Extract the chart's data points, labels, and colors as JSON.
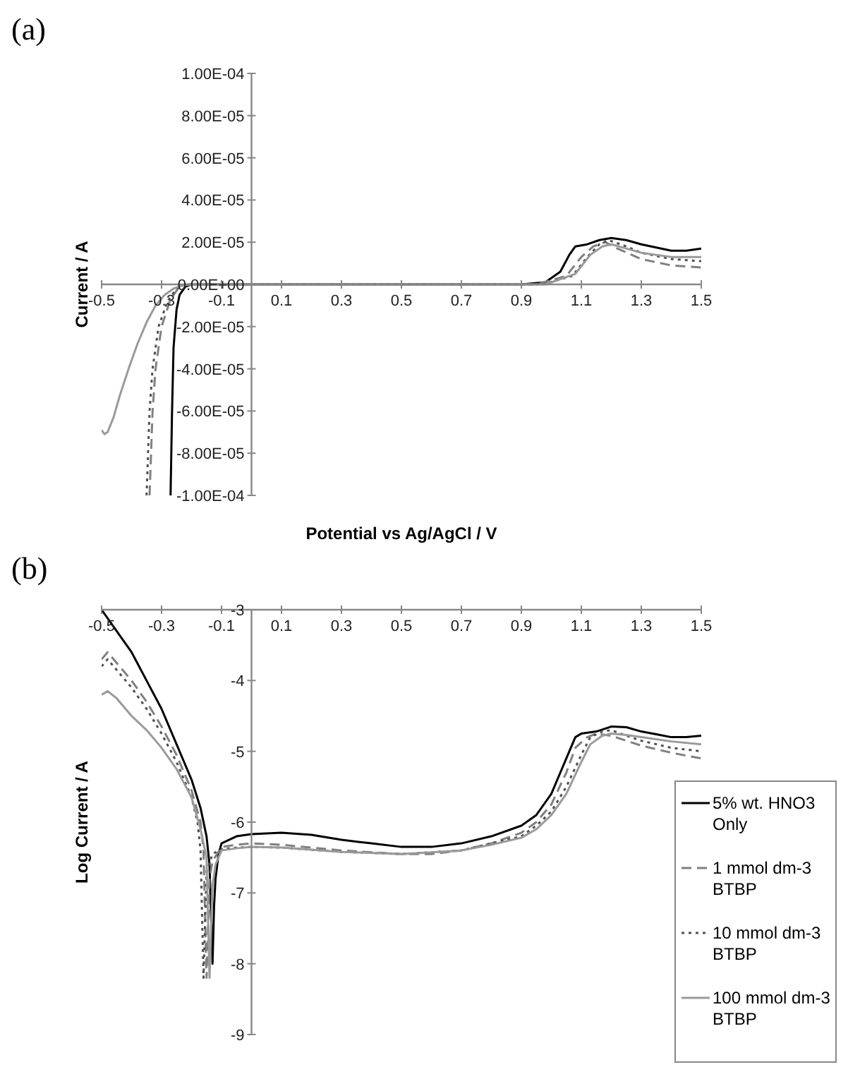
{
  "chart_data": [
    {
      "type": "line",
      "title": "(a)",
      "xlabel": "Potential vs Ag/AgCl / V",
      "ylabel": "Current / A",
      "xlim": [
        -0.5,
        1.5
      ],
      "xticks": [
        -0.5,
        -0.3,
        -0.1,
        0.1,
        0.3,
        0.5,
        0.7,
        0.9,
        1.1,
        1.3,
        1.5
      ],
      "ylim": [
        -0.0001,
        0.0001
      ],
      "yticks": [
        {
          "value": -0.0001,
          "label": "-1.00E-04"
        },
        {
          "value": -8e-05,
          "label": "-8.00E-05"
        },
        {
          "value": -6e-05,
          "label": "-6.00E-05"
        },
        {
          "value": -4e-05,
          "label": "-4.00E-05"
        },
        {
          "value": -2e-05,
          "label": "-2.00E-05"
        },
        {
          "value": 0,
          "label": "0.00E+00"
        },
        {
          "value": 2e-05,
          "label": "2.00E-05"
        },
        {
          "value": 4e-05,
          "label": "4.00E-05"
        },
        {
          "value": 6e-05,
          "label": "6.00E-05"
        },
        {
          "value": 8e-05,
          "label": "8.00E-05"
        },
        {
          "value": 0.0001,
          "label": "1.00E-04"
        }
      ],
      "series": [
        {
          "color": "#000000",
          "line_style": "solid",
          "x": [
            -0.27,
            -0.265,
            -0.26,
            -0.25,
            -0.24,
            -0.22,
            -0.2,
            0,
            0.5,
            0.9,
            0.98,
            1.03,
            1.06,
            1.08,
            1.12,
            1.16,
            1.2,
            1.25,
            1.3,
            1.4,
            1.45,
            1.5
          ],
          "values": [
            -0.0001,
            -6e-05,
            -3e-05,
            -1.2e-05,
            -5e-06,
            -1e-06,
            0,
            0,
            0,
            0,
            1e-06,
            6e-06,
            1.4e-05,
            1.8e-05,
            1.9e-05,
            2.1e-05,
            2.2e-05,
            2.1e-05,
            1.9e-05,
            1.6e-05,
            1.6e-05,
            1.7e-05
          ]
        },
        {
          "color": "#808080",
          "line_style": "dashed",
          "x": [
            -0.34,
            -0.335,
            -0.33,
            -0.32,
            -0.3,
            -0.27,
            -0.24,
            -0.22,
            0,
            0.5,
            0.95,
            1.05,
            1.1,
            1.14,
            1.18,
            1.22,
            1.3,
            1.4,
            1.5
          ],
          "values": [
            -0.0001,
            -8e-05,
            -6e-05,
            -4e-05,
            -2e-05,
            -7e-06,
            -1e-06,
            0,
            0,
            0,
            0,
            4e-06,
            1.3e-05,
            1.8e-05,
            2e-05,
            1.7e-05,
            1.2e-05,
            9e-06,
            8e-06
          ]
        },
        {
          "color": "#505050",
          "line_style": "dotted",
          "x": [
            -0.35,
            -0.345,
            -0.34,
            -0.33,
            -0.31,
            -0.28,
            -0.25,
            -0.22,
            0,
            0.5,
            0.97,
            1.07,
            1.12,
            1.16,
            1.19,
            1.25,
            1.3,
            1.4,
            1.5
          ],
          "values": [
            -0.0001,
            -8e-05,
            -6e-05,
            -4e-05,
            -2e-05,
            -8e-06,
            -2e-06,
            0,
            0,
            0,
            0,
            4e-06,
            1.3e-05,
            1.9e-05,
            2.1e-05,
            1.8e-05,
            1.5e-05,
            1.2e-05,
            1.1e-05
          ]
        },
        {
          "color": "#9a9a9a",
          "line_style": "solid",
          "x": [
            -0.5,
            -0.49,
            -0.48,
            -0.46,
            -0.44,
            -0.41,
            -0.38,
            -0.35,
            -0.32,
            -0.29,
            -0.26,
            -0.23,
            -0.2,
            0,
            0.5,
            0.98,
            1.08,
            1.13,
            1.17,
            1.2,
            1.25,
            1.3,
            1.4,
            1.5
          ],
          "values": [
            -6.9e-05,
            -7.1e-05,
            -7e-05,
            -6.3e-05,
            -5.3e-05,
            -4e-05,
            -2.8e-05,
            -1.8e-05,
            -1e-05,
            -5e-06,
            -2e-06,
            -5e-07,
            0,
            0,
            0,
            0,
            5e-06,
            1.4e-05,
            1.8e-05,
            1.9e-05,
            1.7e-05,
            1.5e-05,
            1.3e-05,
            1.3e-05
          ]
        }
      ]
    },
    {
      "type": "line",
      "title": "(b)",
      "ylabel": "Log Current / A",
      "legend": "bottom right",
      "xlim": [
        -0.5,
        1.5
      ],
      "xticks": [
        -0.5,
        -0.3,
        -0.1,
        0.1,
        0.3,
        0.5,
        0.7,
        0.9,
        1.1,
        1.3,
        1.5
      ],
      "ylim": [
        -9,
        -3
      ],
      "yticks": [
        -9,
        -8,
        -7,
        -6,
        -5,
        -4,
        -3
      ],
      "series": [
        {
          "name": "5% wt. HNO3 Only",
          "color": "#000000",
          "line_style": "solid",
          "x": [
            -0.5,
            -0.45,
            -0.4,
            -0.35,
            -0.3,
            -0.25,
            -0.2,
            -0.17,
            -0.15,
            -0.14,
            -0.13,
            -0.125,
            -0.12,
            -0.11,
            -0.1,
            -0.05,
            0,
            0.1,
            0.2,
            0.3,
            0.4,
            0.5,
            0.6,
            0.7,
            0.8,
            0.9,
            0.95,
            1.0,
            1.03,
            1.06,
            1.08,
            1.1,
            1.15,
            1.2,
            1.25,
            1.3,
            1.35,
            1.4,
            1.45,
            1.5
          ],
          "values": [
            -3,
            -3.3,
            -3.6,
            -4.0,
            -4.4,
            -4.9,
            -5.4,
            -5.8,
            -6.2,
            -6.6,
            -8.0,
            -7.2,
            -6.8,
            -6.45,
            -6.3,
            -6.2,
            -6.17,
            -6.15,
            -6.18,
            -6.25,
            -6.3,
            -6.35,
            -6.35,
            -6.3,
            -6.2,
            -6.05,
            -5.9,
            -5.6,
            -5.3,
            -5.0,
            -4.8,
            -4.75,
            -4.72,
            -4.65,
            -4.66,
            -4.72,
            -4.76,
            -4.8,
            -4.8,
            -4.78
          ]
        },
        {
          "name": "1 mmol dm-3 BTBP",
          "color": "#808080",
          "line_style": "dashed",
          "x": [
            -0.5,
            -0.48,
            -0.45,
            -0.4,
            -0.35,
            -0.3,
            -0.25,
            -0.2,
            -0.17,
            -0.16,
            -0.15,
            -0.14,
            -0.13,
            -0.1,
            -0.05,
            0,
            0.1,
            0.3,
            0.5,
            0.6,
            0.7,
            0.8,
            0.9,
            0.95,
            1.0,
            1.05,
            1.08,
            1.12,
            1.15,
            1.2,
            1.25,
            1.3,
            1.4,
            1.5
          ],
          "values": [
            -3.7,
            -3.6,
            -3.75,
            -4.0,
            -4.3,
            -4.65,
            -5.05,
            -5.55,
            -6.0,
            -6.4,
            -8.2,
            -6.8,
            -6.55,
            -6.35,
            -6.32,
            -6.3,
            -6.32,
            -6.4,
            -6.45,
            -6.45,
            -6.4,
            -6.3,
            -6.15,
            -6.0,
            -5.75,
            -5.3,
            -4.95,
            -4.8,
            -4.75,
            -4.78,
            -4.85,
            -4.92,
            -5.02,
            -5.1
          ]
        },
        {
          "name": "10 mmol dm-3 BTBP",
          "color": "#505050",
          "line_style": "dotted",
          "x": [
            -0.5,
            -0.48,
            -0.45,
            -0.4,
            -0.35,
            -0.3,
            -0.25,
            -0.2,
            -0.18,
            -0.17,
            -0.16,
            -0.15,
            -0.13,
            -0.1,
            -0.05,
            0,
            0.1,
            0.3,
            0.5,
            0.7,
            0.8,
            0.9,
            0.95,
            1.0,
            1.05,
            1.1,
            1.13,
            1.17,
            1.2,
            1.25,
            1.3,
            1.4,
            1.5
          ],
          "values": [
            -3.8,
            -3.7,
            -3.85,
            -4.1,
            -4.4,
            -4.75,
            -5.15,
            -5.65,
            -6.0,
            -6.4,
            -8.2,
            -6.7,
            -6.45,
            -6.38,
            -6.36,
            -6.35,
            -6.36,
            -6.42,
            -6.45,
            -6.4,
            -6.3,
            -6.2,
            -6.05,
            -5.85,
            -5.5,
            -5.05,
            -4.8,
            -4.72,
            -4.7,
            -4.78,
            -4.85,
            -4.95,
            -5.0
          ]
        },
        {
          "name": "100 mmol dm-3 BTBP",
          "color": "#9a9a9a",
          "line_style": "solid",
          "x": [
            -0.5,
            -0.48,
            -0.45,
            -0.4,
            -0.35,
            -0.3,
            -0.25,
            -0.2,
            -0.17,
            -0.15,
            -0.14,
            -0.13,
            -0.12,
            -0.1,
            -0.05,
            0,
            0.1,
            0.3,
            0.5,
            0.7,
            0.8,
            0.9,
            0.95,
            1.0,
            1.05,
            1.1,
            1.13,
            1.17,
            1.2,
            1.25,
            1.3,
            1.4,
            1.5
          ],
          "values": [
            -4.2,
            -4.15,
            -4.25,
            -4.5,
            -4.7,
            -4.95,
            -5.25,
            -5.65,
            -6.1,
            -6.5,
            -8.2,
            -6.9,
            -6.6,
            -6.4,
            -6.37,
            -6.35,
            -6.36,
            -6.42,
            -6.45,
            -6.4,
            -6.32,
            -6.22,
            -6.1,
            -5.9,
            -5.6,
            -5.15,
            -4.9,
            -4.78,
            -4.75,
            -4.77,
            -4.8,
            -4.86,
            -4.9
          ]
        }
      ]
    }
  ]
}
